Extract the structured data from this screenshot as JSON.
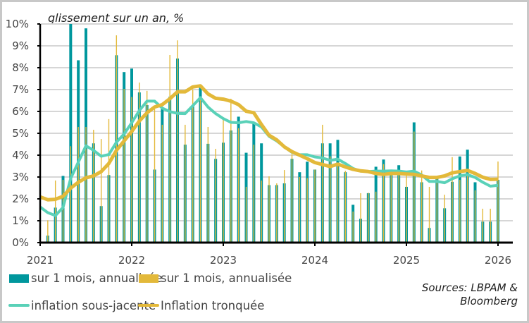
{
  "chart_data": {
    "type": "bar+line",
    "title": "glissement sur un an, %",
    "xlabel": "",
    "ylabel": "",
    "ylim": [
      0,
      10
    ],
    "yticks": [
      "0%",
      "1%",
      "2%",
      "3%",
      "4%",
      "5%",
      "6%",
      "7%",
      "8%",
      "9%",
      "10%"
    ],
    "xticks": [
      "2021",
      "2022",
      "2023",
      "2024",
      "2025",
      "2026"
    ],
    "xlim": [
      "2021-01",
      "2026-01"
    ],
    "grid": true,
    "legend": "bottom",
    "source": [
      "Sources: LBPAM &",
      "Bloomberg"
    ],
    "bar_x": [
      "2021-02",
      "2021-03",
      "2021-04",
      "2021-05",
      "2021-06",
      "2021-07",
      "2021-08",
      "2021-09",
      "2021-10",
      "2021-11",
      "2021-12",
      "2022-01",
      "2022-02",
      "2022-03",
      "2022-04",
      "2022-05",
      "2022-06",
      "2022-07",
      "2022-08",
      "2022-09",
      "2022-10",
      "2022-11",
      "2022-12",
      "2023-01",
      "2023-02",
      "2023-03",
      "2023-04",
      "2023-05",
      "2023-06",
      "2023-07",
      "2023-08",
      "2023-09",
      "2023-10",
      "2023-11",
      "2023-12",
      "2024-01",
      "2024-02",
      "2024-03",
      "2024-04",
      "2024-05",
      "2024-06",
      "2024-07",
      "2024-08",
      "2024-09",
      "2024-10",
      "2024-11",
      "2024-12",
      "2025-01",
      "2025-02",
      "2025-03",
      "2025-04",
      "2025-05",
      "2025-06",
      "2025-07",
      "2025-08",
      "2025-09",
      "2025-10",
      "2025-11",
      "2025-12",
      "2026-01"
    ],
    "line_x": [
      "2021-01",
      "2021-02",
      "2021-03",
      "2021-04",
      "2021-05",
      "2021-06",
      "2021-07",
      "2021-08",
      "2021-09",
      "2021-10",
      "2021-11",
      "2021-12",
      "2022-01",
      "2022-02",
      "2022-03",
      "2022-04",
      "2022-05",
      "2022-06",
      "2022-07",
      "2022-08",
      "2022-09",
      "2022-10",
      "2022-11",
      "2022-12",
      "2023-01",
      "2023-02",
      "2023-03",
      "2023-04",
      "2023-05",
      "2023-06",
      "2023-07",
      "2023-08",
      "2023-09",
      "2023-10",
      "2023-11",
      "2023-12",
      "2024-01",
      "2024-02",
      "2024-03",
      "2024-04",
      "2024-05",
      "2024-06",
      "2024-07",
      "2024-08",
      "2024-09",
      "2024-10",
      "2024-11",
      "2024-12",
      "2025-01",
      "2025-02",
      "2025-03",
      "2025-04",
      "2025-05",
      "2025-06",
      "2025-07",
      "2025-08",
      "2025-09",
      "2025-10",
      "2025-11",
      "2025-12",
      "2026-01"
    ],
    "series": [
      {
        "name": "sur 1 mois, annualisée",
        "kind": "bar",
        "color": "#00979d",
        "values": [
          0.32,
          1.6,
          3.05,
          10.0,
          8.34,
          9.8,
          4.54,
          1.67,
          3.09,
          8.57,
          7.8,
          7.96,
          6.87,
          6.29,
          3.34,
          6.1,
          6.67,
          8.42,
          4.48,
          6.26,
          7.09,
          4.52,
          3.83,
          4.57,
          5.13,
          5.76,
          4.11,
          5.45,
          4.54,
          2.63,
          2.63,
          2.71,
          3.83,
          3.22,
          3.7,
          3.34,
          4.54,
          4.54,
          4.7,
          3.22,
          1.73,
          1.09,
          2.26,
          3.47,
          3.8,
          3.11,
          3.54,
          2.55,
          5.5,
          2.76,
          0.67,
          2.92,
          1.57,
          2.78,
          3.94,
          4.25,
          2.76,
          0.96,
          0.96,
          2.87
        ]
      },
      {
        "name": "sur 1 mois, annualisée",
        "kind": "bar",
        "color": "#e3b93a",
        "values": [
          1.02,
          2.84,
          2.87,
          4.41,
          5.29,
          5.29,
          5.16,
          4.74,
          5.65,
          9.48,
          7.03,
          6.66,
          7.32,
          6.94,
          6.1,
          5.39,
          8.58,
          9.25,
          5.39,
          7.0,
          6.58,
          5.29,
          4.29,
          5.61,
          6.58,
          5.23,
          2.55,
          4.48,
          2.84,
          3.03,
          2.71,
          3.32,
          4.05,
          3.0,
          2.95,
          3.34,
          5.39,
          3.95,
          3.57,
          3.28,
          1.42,
          2.26,
          2.28,
          2.33,
          3.59,
          3.11,
          3.1,
          3.09,
          5.08,
          3.3,
          2.55,
          2.92,
          2.19,
          3.91,
          2.87,
          3.12,
          2.39,
          1.55,
          1.55,
          3.71
        ]
      },
      {
        "name": "inflation sous-jacente",
        "kind": "line",
        "color": "#5ad1b8",
        "values": [
          1.63,
          1.37,
          1.24,
          1.61,
          2.93,
          3.68,
          4.43,
          4.22,
          3.95,
          4.03,
          4.59,
          4.97,
          5.48,
          6.04,
          6.47,
          6.47,
          6.15,
          5.99,
          5.91,
          5.9,
          6.26,
          6.63,
          6.2,
          5.9,
          5.67,
          5.5,
          5.48,
          5.54,
          5.48,
          5.29,
          4.86,
          4.65,
          4.38,
          4.13,
          4.02,
          4.02,
          3.92,
          3.87,
          3.76,
          3.82,
          3.62,
          3.39,
          3.27,
          3.25,
          3.27,
          3.27,
          3.28,
          3.27,
          3.23,
          3.27,
          3.09,
          2.8,
          2.8,
          2.74,
          2.92,
          3.05,
          3.11,
          2.98,
          2.76,
          2.58,
          2.62
        ]
      },
      {
        "name": "Inflation tronquée",
        "kind": "line",
        "color": "#e3b93a",
        "values": [
          2.09,
          1.96,
          1.98,
          2.12,
          2.49,
          2.76,
          2.96,
          3.05,
          3.25,
          3.62,
          4.22,
          4.65,
          5.08,
          5.56,
          5.94,
          6.2,
          6.31,
          6.58,
          6.9,
          6.9,
          7.12,
          7.17,
          6.8,
          6.6,
          6.56,
          6.47,
          6.31,
          6.01,
          5.94,
          5.4,
          4.91,
          4.7,
          4.38,
          4.16,
          4.0,
          3.84,
          3.66,
          3.57,
          3.48,
          3.59,
          3.46,
          3.35,
          3.28,
          3.25,
          3.16,
          3.12,
          3.16,
          3.16,
          3.14,
          3.12,
          3.05,
          2.98,
          2.98,
          3.05,
          3.19,
          3.25,
          3.3,
          3.16,
          2.99,
          2.89,
          2.9
        ]
      }
    ]
  }
}
